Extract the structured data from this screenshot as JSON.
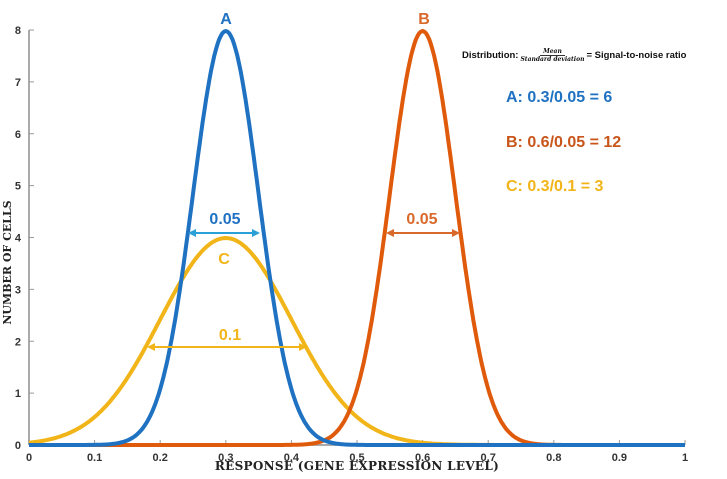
{
  "chart_data": {
    "type": "line",
    "title": "",
    "xlabel": "RESPONSE (GENE EXPRESSION LEVEL)",
    "ylabel": "NUMBER OF CELLS",
    "xlim": [
      0,
      1
    ],
    "ylim": [
      0,
      8
    ],
    "xticks": [
      "0",
      "0.1",
      "0.2",
      "0.3",
      "0.4",
      "0.5",
      "0.6",
      "0.7",
      "0.8",
      "0.9",
      "1"
    ],
    "yticks": [
      "0",
      "1",
      "2",
      "3",
      "4",
      "5",
      "6",
      "7",
      "8"
    ],
    "grid": false,
    "series": [
      {
        "name": "A",
        "distribution": "normal",
        "mean": 0.3,
        "sd": 0.05,
        "peak": 7.98,
        "color": "#1F72C2",
        "width_label": "0.05"
      },
      {
        "name": "B",
        "distribution": "normal",
        "mean": 0.6,
        "sd": 0.05,
        "peak": 7.98,
        "color": "#E05A0C",
        "width_label": "0.05"
      },
      {
        "name": "C",
        "distribution": "normal",
        "mean": 0.3,
        "sd": 0.1,
        "peak": 3.99,
        "color": "#F2B519",
        "width_label": "0.1"
      }
    ],
    "annotations": {
      "formula_prefix": "Distribution:",
      "formula_numerator": "Mean",
      "formula_denominator": "Standard deviation",
      "formula_suffix": "= Signal-to-noise ratio",
      "ratio_A": "A: 0.3/0.05 = 6",
      "ratio_B": "B: 0.6/0.05 = 12",
      "ratio_C": "C: 0.3/0.1 = 3"
    }
  }
}
